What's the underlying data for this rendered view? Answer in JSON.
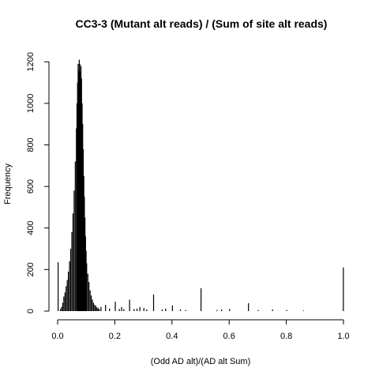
{
  "chart_data": {
    "type": "bar",
    "title": "CC3-3 (Mutant alt reads) / (Sum of site alt reads)",
    "xlabel": "(Odd AD alt)/(AD alt Sum)",
    "ylabel": "Frequency",
    "xlim": [
      0,
      1
    ],
    "ylim": [
      0,
      1220
    ],
    "x_ticks": [
      "0.0",
      "0.2",
      "0.4",
      "0.6",
      "0.8",
      "1.0"
    ],
    "y_ticks": [
      "0",
      "200",
      "400",
      "600",
      "800",
      "1000",
      "1200"
    ],
    "bin_width": 0.002,
    "bins": [
      {
        "x": 0.0,
        "y": 235
      },
      {
        "x": 0.008,
        "y": 10
      },
      {
        "x": 0.012,
        "y": 20
      },
      {
        "x": 0.016,
        "y": 40
      },
      {
        "x": 0.02,
        "y": 70
      },
      {
        "x": 0.024,
        "y": 90
      },
      {
        "x": 0.028,
        "y": 120
      },
      {
        "x": 0.032,
        "y": 150
      },
      {
        "x": 0.036,
        "y": 190
      },
      {
        "x": 0.04,
        "y": 240
      },
      {
        "x": 0.044,
        "y": 300
      },
      {
        "x": 0.048,
        "y": 380
      },
      {
        "x": 0.052,
        "y": 470
      },
      {
        "x": 0.056,
        "y": 580
      },
      {
        "x": 0.06,
        "y": 720
      },
      {
        "x": 0.064,
        "y": 880
      },
      {
        "x": 0.066,
        "y": 1000
      },
      {
        "x": 0.068,
        "y": 1100
      },
      {
        "x": 0.07,
        "y": 1190
      },
      {
        "x": 0.072,
        "y": 1160
      },
      {
        "x": 0.074,
        "y": 1210
      },
      {
        "x": 0.076,
        "y": 1190
      },
      {
        "x": 0.078,
        "y": 1150
      },
      {
        "x": 0.08,
        "y": 1180
      },
      {
        "x": 0.082,
        "y": 1120
      },
      {
        "x": 0.084,
        "y": 1000
      },
      {
        "x": 0.086,
        "y": 900
      },
      {
        "x": 0.088,
        "y": 780
      },
      {
        "x": 0.09,
        "y": 650
      },
      {
        "x": 0.092,
        "y": 550
      },
      {
        "x": 0.094,
        "y": 450
      },
      {
        "x": 0.096,
        "y": 360
      },
      {
        "x": 0.098,
        "y": 290
      },
      {
        "x": 0.1,
        "y": 230
      },
      {
        "x": 0.104,
        "y": 180
      },
      {
        "x": 0.108,
        "y": 140
      },
      {
        "x": 0.112,
        "y": 100
      },
      {
        "x": 0.116,
        "y": 75
      },
      {
        "x": 0.12,
        "y": 55
      },
      {
        "x": 0.124,
        "y": 40
      },
      {
        "x": 0.128,
        "y": 30
      },
      {
        "x": 0.132,
        "y": 25
      },
      {
        "x": 0.136,
        "y": 18
      },
      {
        "x": 0.14,
        "y": 14
      },
      {
        "x": 0.144,
        "y": 10
      },
      {
        "x": 0.15,
        "y": 20
      },
      {
        "x": 0.166,
        "y": 30
      },
      {
        "x": 0.18,
        "y": 12
      },
      {
        "x": 0.2,
        "y": 45
      },
      {
        "x": 0.214,
        "y": 10
      },
      {
        "x": 0.222,
        "y": 20
      },
      {
        "x": 0.23,
        "y": 10
      },
      {
        "x": 0.25,
        "y": 55
      },
      {
        "x": 0.266,
        "y": 10
      },
      {
        "x": 0.276,
        "y": 12
      },
      {
        "x": 0.286,
        "y": 20
      },
      {
        "x": 0.3,
        "y": 15
      },
      {
        "x": 0.31,
        "y": 8
      },
      {
        "x": 0.334,
        "y": 80
      },
      {
        "x": 0.364,
        "y": 8
      },
      {
        "x": 0.376,
        "y": 12
      },
      {
        "x": 0.4,
        "y": 28
      },
      {
        "x": 0.428,
        "y": 8
      },
      {
        "x": 0.446,
        "y": 5
      },
      {
        "x": 0.5,
        "y": 110
      },
      {
        "x": 0.556,
        "y": 5
      },
      {
        "x": 0.572,
        "y": 8
      },
      {
        "x": 0.6,
        "y": 10
      },
      {
        "x": 0.666,
        "y": 38
      },
      {
        "x": 0.7,
        "y": 5
      },
      {
        "x": 0.75,
        "y": 8
      },
      {
        "x": 0.8,
        "y": 5
      },
      {
        "x": 0.858,
        "y": 3
      },
      {
        "x": 0.998,
        "y": 210
      }
    ]
  }
}
